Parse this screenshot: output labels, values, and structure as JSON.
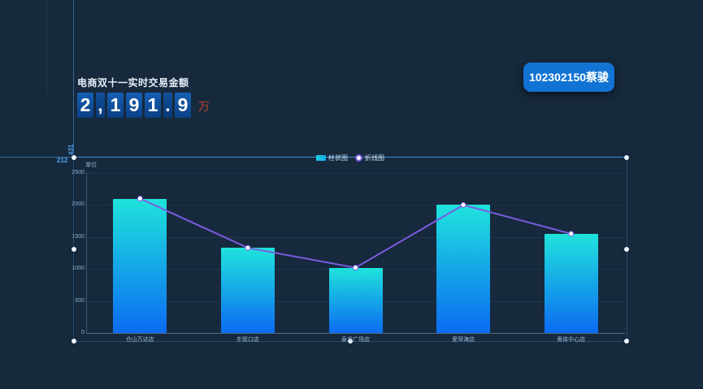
{
  "page": {
    "background": "#16293d"
  },
  "header": {
    "title": "电商双十一实时交易金额",
    "amount_text": "2,191.9",
    "amount_chars": [
      "2",
      ",",
      "1",
      "9",
      "1",
      ".",
      "9"
    ],
    "unit_suffix": "万"
  },
  "user_badge": {
    "label": "102302150蔡骏",
    "color": "#1173d4"
  },
  "editor": {
    "coord_x_label": "212",
    "coord_y_label": "431"
  },
  "chart_data": {
    "type": "bar",
    "title": "",
    "unit_label": "单位",
    "categories": [
      "仓山万达店",
      "东街口店",
      "泰禾广场店",
      "爱琴海店",
      "奥体中心店"
    ],
    "series": [
      {
        "name": "柱状图",
        "type": "bar",
        "values": [
          2100,
          1330,
          1020,
          2000,
          1550
        ]
      },
      {
        "name": "折线图",
        "type": "line",
        "values": [
          2100,
          1330,
          1020,
          2000,
          1550
        ]
      }
    ],
    "xlabel": "",
    "ylabel": "",
    "ylim": [
      0,
      2500
    ],
    "yticks": [
      0,
      500,
      1000,
      1500,
      2000,
      2500
    ],
    "grid": true,
    "legend_position": "top-center",
    "colors": {
      "bar_gradient_top": "#1fe3dc",
      "bar_gradient_bottom": "#0c6bf2",
      "line": "#7a5ce0",
      "marker_fill": "#ffffff"
    }
  }
}
